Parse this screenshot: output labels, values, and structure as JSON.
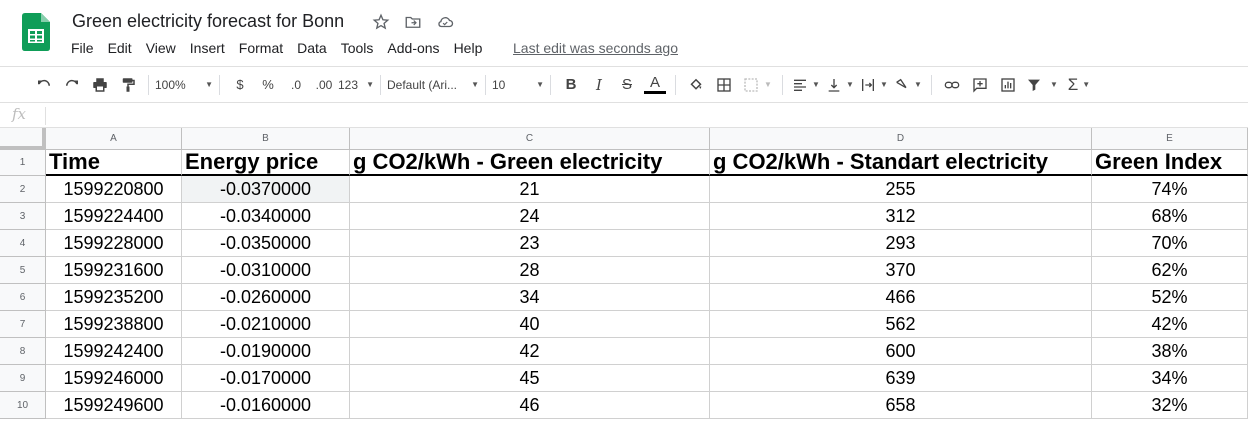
{
  "app": {
    "title": "Green electricity forecast for Bonn",
    "last_edit": "Last edit was seconds ago"
  },
  "menu": [
    "File",
    "Edit",
    "View",
    "Insert",
    "Format",
    "Data",
    "Tools",
    "Add-ons",
    "Help"
  ],
  "toolbar": {
    "zoom": "100%",
    "currency": "$",
    "percent": "%",
    "decrease_decimal": ".0",
    "increase_decimal": ".00",
    "more_formats": "123",
    "font": "Default (Ari...",
    "font_size": "10",
    "bold": "B",
    "italic": "I",
    "strike": "S",
    "text_color": "A",
    "text_color_value": "#000000"
  },
  "formula_bar": {
    "label": "fx",
    "value": ""
  },
  "sheet": {
    "columns": [
      "A",
      "B",
      "C",
      "D",
      "E"
    ],
    "row_numbers": [
      "1",
      "2",
      "3",
      "4",
      "5",
      "6",
      "7",
      "8",
      "9",
      "10"
    ],
    "header": [
      "Time",
      "Energy price",
      "g CO2/kWh - Green electricity",
      "g CO2/kWh - Standart electricity",
      "Green Index"
    ],
    "rows": [
      [
        "1599220800",
        "-0.0370000",
        "21",
        "255",
        "74%"
      ],
      [
        "1599224400",
        "-0.0340000",
        "24",
        "312",
        "68%"
      ],
      [
        "1599228000",
        "-0.0350000",
        "23",
        "293",
        "70%"
      ],
      [
        "1599231600",
        "-0.0310000",
        "28",
        "370",
        "62%"
      ],
      [
        "1599235200",
        "-0.0260000",
        "34",
        "466",
        "52%"
      ],
      [
        "1599238800",
        "-0.0210000",
        "40",
        "562",
        "42%"
      ],
      [
        "1599242400",
        "-0.0190000",
        "42",
        "600",
        "38%"
      ],
      [
        "1599246000",
        "-0.0170000",
        "45",
        "639",
        "34%"
      ],
      [
        "1599249600",
        "-0.0160000",
        "46",
        "658",
        "32%"
      ]
    ]
  },
  "colors": {
    "brand": "#0f9d58",
    "header_bg": "#f8f9fa",
    "grid_line": "#d0d0d0"
  }
}
